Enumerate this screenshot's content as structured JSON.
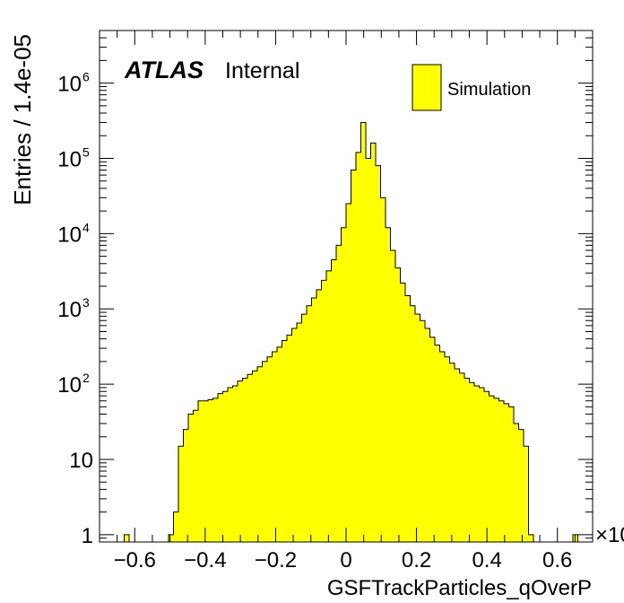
{
  "chart_data": {
    "type": "bar",
    "histogram": true,
    "xlabel": "GSFTrackParticles_qOverP",
    "ylabel": "Entries / 1.4e-05",
    "x_exponent_label": "×10",
    "yscale": "log",
    "xlim": [
      -0.7,
      0.7
    ],
    "ylim": [
      0.8,
      5000000
    ],
    "xticks": [
      -0.6,
      -0.4,
      -0.2,
      0,
      0.2,
      0.4,
      0.6
    ],
    "xtick_labels": [
      "−0.6",
      "−0.4",
      "−0.2",
      "0",
      "0.2",
      "0.4",
      "0.6"
    ],
    "yticks": [
      {
        "value": 1,
        "base": "1",
        "exp": ""
      },
      {
        "value": 10,
        "base": "10",
        "exp": ""
      },
      {
        "value": 100,
        "base": "10",
        "exp": "2"
      },
      {
        "value": 1000,
        "base": "10",
        "exp": "3"
      },
      {
        "value": 10000,
        "base": "10",
        "exp": "4"
      },
      {
        "value": 100000,
        "base": "10",
        "exp": "5"
      },
      {
        "value": 1000000,
        "base": "10",
        "exp": "6"
      }
    ],
    "bin_width": 0.014,
    "x_start": -0.7,
    "fill_color": "#ffff00",
    "series": [
      {
        "name": "Simulation",
        "values": [
          0,
          0,
          0,
          0,
          0,
          1,
          0,
          0,
          0,
          0,
          0,
          0,
          0,
          0,
          1,
          2,
          15,
          25,
          40,
          45,
          60,
          60,
          62,
          65,
          75,
          80,
          90,
          95,
          110,
          120,
          135,
          150,
          170,
          200,
          230,
          270,
          310,
          380,
          450,
          550,
          650,
          850,
          1100,
          1400,
          1800,
          2400,
          3200,
          4500,
          7000,
          12000,
          25000,
          70000,
          120000,
          300000,
          100000,
          160000,
          80000,
          30000,
          12000,
          6000,
          3500,
          2200,
          1500,
          1100,
          850,
          700,
          550,
          420,
          330,
          270,
          230,
          190,
          160,
          140,
          120,
          105,
          95,
          90,
          80,
          70,
          65,
          60,
          55,
          50,
          30,
          25,
          15,
          1,
          0,
          0,
          0,
          0,
          0,
          0,
          0,
          0,
          1,
          0,
          0,
          0
        ]
      }
    ],
    "legend": {
      "position": "top-right",
      "label": "Simulation"
    }
  },
  "brand": {
    "atlas": "ATLAS",
    "status": "Internal"
  }
}
